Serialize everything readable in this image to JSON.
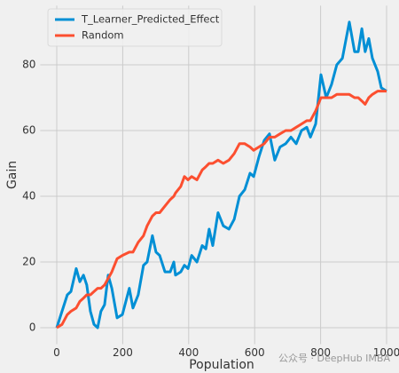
{
  "chart_data": {
    "type": "line",
    "xlabel": "Population",
    "ylabel": "Gain",
    "watermark": "公众号 · DeepHub IMBA",
    "x": [
      0,
      16,
      32,
      43,
      59,
      70,
      81,
      91,
      102,
      113,
      124,
      134,
      145,
      156,
      167,
      183,
      199,
      220,
      231,
      247,
      263,
      274,
      290,
      301,
      312,
      328,
      344,
      355,
      360,
      376,
      387,
      398,
      409,
      425,
      441,
      452,
      462,
      473,
      489,
      505,
      522,
      538,
      554,
      570,
      586,
      597,
      613,
      629,
      645,
      661,
      677,
      694,
      710,
      726,
      742,
      758,
      769,
      785,
      801,
      817,
      833,
      849,
      866,
      887,
      903,
      914,
      925,
      935,
      946,
      957,
      973,
      984,
      1000
    ],
    "series": [
      {
        "name": "T_Learner_Predicted_Effect",
        "color": "#008fd5",
        "values": [
          0,
          5,
          10,
          11,
          18,
          14,
          16,
          13,
          5,
          1,
          0,
          5,
          7,
          16,
          12,
          3,
          4,
          12,
          6,
          10,
          19,
          20,
          28,
          23,
          22,
          17,
          17,
          20,
          16,
          17,
          19,
          18,
          22,
          20,
          25,
          24,
          30,
          25,
          35,
          31,
          30,
          33,
          40,
          42,
          47,
          46,
          52,
          57,
          59,
          51,
          55,
          56,
          58,
          56,
          60,
          61,
          58,
          62,
          77,
          70,
          74,
          80,
          82,
          93,
          84,
          84,
          91,
          84,
          88,
          82,
          78,
          73,
          72
        ]
      },
      {
        "name": "Random",
        "color": "#fc4f30",
        "values": [
          0,
          1,
          4,
          5,
          6,
          8,
          9,
          10,
          10,
          11,
          12,
          12,
          13,
          15,
          17,
          21,
          22,
          23,
          23,
          26,
          28,
          31,
          34,
          35,
          35,
          37,
          39,
          40,
          41,
          43,
          46,
          45,
          46,
          45,
          48,
          49,
          50,
          50,
          51,
          50,
          51,
          53,
          56,
          56,
          55,
          54,
          55,
          56,
          58,
          58,
          59,
          60,
          60,
          61,
          62,
          63,
          63,
          66,
          70,
          70,
          70,
          71,
          71,
          71,
          70,
          70,
          69,
          68,
          70,
          71,
          72,
          72,
          72
        ]
      }
    ],
    "xlim": [
      -50,
      1050
    ],
    "ylim": [
      -5,
      98
    ],
    "xticks": [
      0,
      200,
      400,
      600,
      800,
      1000
    ],
    "yticks": [
      0,
      20,
      40,
      60,
      80
    ],
    "grid": true,
    "legend": "upper left"
  }
}
